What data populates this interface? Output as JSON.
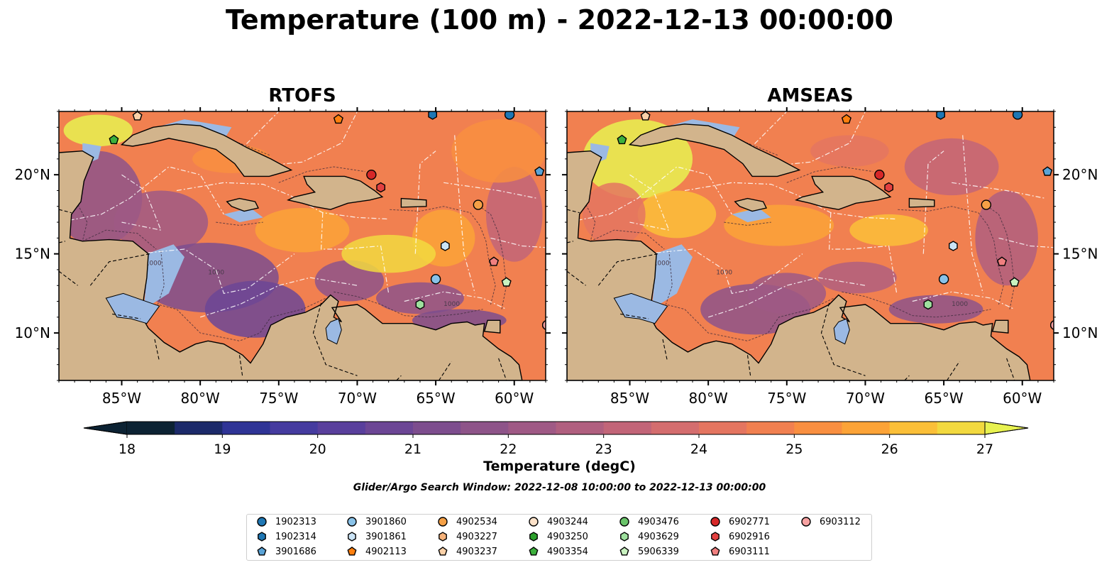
{
  "title": "Temperature (100 m) - 2022-12-13 00:00:00",
  "panels": [
    {
      "id": "rtofs",
      "title": "RTOFS"
    },
    {
      "id": "amseas",
      "title": "AMSEAS"
    }
  ],
  "map": {
    "lon_range": [
      -89,
      -58
    ],
    "lat_range": [
      7,
      24
    ],
    "lon_ticks": [
      -85,
      -80,
      -75,
      -70,
      -65,
      -60
    ],
    "lon_tick_labels": [
      "85°W",
      "80°W",
      "75°W",
      "70°W",
      "65°W",
      "60°W"
    ],
    "lat_ticks": [
      10,
      15,
      20
    ],
    "lat_tick_labels": [
      "10°N",
      "15°N",
      "20°N"
    ],
    "contour_label": "1000",
    "colors": {
      "land": "#d2b48c",
      "shallow_sea": "#9bb9e3",
      "border": "#000000",
      "eez": "#ffffff"
    }
  },
  "colorbar": {
    "label": "Temperature (degC)",
    "min": 18,
    "max": 27,
    "step": 0.5,
    "ticks": [
      18,
      19,
      20,
      21,
      22,
      23,
      24,
      25,
      26,
      27
    ],
    "extend": "both",
    "colormap": "thermal",
    "colors": [
      "#0c2233",
      "#1c2a6a",
      "#2f3496",
      "#453b9f",
      "#593f9c",
      "#6c4695",
      "#7d4d8e",
      "#8e5489",
      "#9f5985",
      "#b05f7f",
      "#c26578",
      "#d46d6e",
      "#e47560",
      "#f18050",
      "#f98f40",
      "#fca337",
      "#fbbf38",
      "#f2d93f",
      "#e8f250"
    ]
  },
  "search_window": "Glider/Argo Search Window: 2022-12-08 10:00:00 to 2022-12-13 00:00:00",
  "floats": [
    {
      "id": "1902313",
      "marker": "circle",
      "color": "#1f77b4",
      "lon": -60.3,
      "lat": 23.8
    },
    {
      "id": "1902314",
      "marker": "hexagon",
      "color": "#1f77b4",
      "lon": -65.2,
      "lat": 23.8
    },
    {
      "id": "3901686",
      "marker": "pentagon",
      "color": "#5aa3d6",
      "lon": -58.4,
      "lat": 20.2
    },
    {
      "id": "3901860",
      "marker": "circle",
      "color": "#89c2e8",
      "lon": -65.0,
      "lat": 13.4
    },
    {
      "id": "3901861",
      "marker": "hexagon",
      "color": "#cbe4f6",
      "lon": -64.4,
      "lat": 15.5
    },
    {
      "id": "4902113",
      "marker": "pentagon",
      "color": "#ff7f0e",
      "lon": -71.2,
      "lat": 23.5
    },
    {
      "id": "4902534",
      "marker": "circle",
      "color": "#f5a046",
      "lon": -62.3,
      "lat": 18.1
    },
    {
      "id": "4903227",
      "marker": "hexagon",
      "color": "#f6b27a",
      "lon": -57.9,
      "lat": 10.5
    },
    {
      "id": "4903237",
      "marker": "pentagon",
      "color": "#fbd1a8",
      "lon": -84.0,
      "lat": 23.7
    },
    {
      "id": "4903244",
      "marker": "circle",
      "color": "#fde2c9",
      "lon": -57.9,
      "lat": 10.5
    },
    {
      "id": "4903250",
      "marker": "hexagon",
      "color": "#2ca02c",
      "lon": -57.9,
      "lat": 10.5
    },
    {
      "id": "4903354",
      "marker": "pentagon",
      "color": "#3cb03c",
      "lon": -85.5,
      "lat": 22.2
    },
    {
      "id": "4903476",
      "marker": "circle",
      "color": "#6ac46a",
      "lon": -57.9,
      "lat": 10.5
    },
    {
      "id": "4903629",
      "marker": "hexagon",
      "color": "#9ee09e",
      "lon": -66.0,
      "lat": 11.8
    },
    {
      "id": "5906339",
      "marker": "pentagon",
      "color": "#c9f2c0",
      "lon": -60.5,
      "lat": 13.2
    },
    {
      "id": "6902771",
      "marker": "circle",
      "color": "#d62728",
      "lon": -69.1,
      "lat": 20.0
    },
    {
      "id": "6902916",
      "marker": "hexagon",
      "color": "#e34040",
      "lon": -68.5,
      "lat": 19.2
    },
    {
      "id": "6903111",
      "marker": "pentagon",
      "color": "#f07f7f",
      "lon": -61.3,
      "lat": 14.5
    },
    {
      "id": "6903112",
      "marker": "circle",
      "color": "#f7a1a1",
      "lon": -57.9,
      "lat": 10.5
    }
  ]
}
